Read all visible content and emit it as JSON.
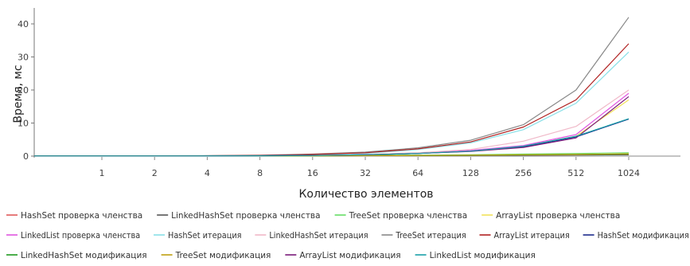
{
  "chart_data": {
    "type": "line",
    "title": "",
    "xlabel": "Количество элементов",
    "ylabel": "Время, мс",
    "categories": [
      "1",
      "2",
      "4",
      "8",
      "16",
      "32",
      "64",
      "128",
      "256",
      "512",
      "1024"
    ],
    "ylim": [
      0,
      45
    ],
    "yticks": [
      0,
      10,
      20,
      30,
      40
    ],
    "grid": false,
    "legend_position": "bottom",
    "series": [
      {
        "name": "HashSet проверка членства",
        "color": "#e05a5a",
        "values": [
          0.05,
          0.05,
          0.05,
          0.05,
          0.1,
          0.15,
          0.2,
          0.25,
          0.3,
          0.35,
          0.4
        ]
      },
      {
        "name": "LinkedHashSet проверка членства",
        "color": "#555555",
        "values": [
          0.05,
          0.05,
          0.05,
          0.05,
          0.1,
          0.15,
          0.2,
          0.25,
          0.3,
          0.35,
          0.4
        ]
      },
      {
        "name": "TreeSet проверка членства",
        "color": "#66dd66",
        "values": [
          0.05,
          0.05,
          0.05,
          0.05,
          0.1,
          0.2,
          0.3,
          0.4,
          0.6,
          0.8,
          1.0
        ]
      },
      {
        "name": "ArrayList проверка членства",
        "color": "#f2e25a",
        "values": [
          0.05,
          0.05,
          0.05,
          0.1,
          0.2,
          0.4,
          0.8,
          1.5,
          3.0,
          6.0,
          17.0
        ]
      },
      {
        "name": "LinkedList проверка членства",
        "color": "#e055e0",
        "values": [
          0.05,
          0.05,
          0.05,
          0.1,
          0.2,
          0.4,
          0.9,
          1.7,
          3.2,
          6.5,
          19.0
        ]
      },
      {
        "name": "HashSet итерация",
        "color": "#88e0e8",
        "values": [
          0.05,
          0.1,
          0.1,
          0.2,
          0.4,
          0.8,
          2.0,
          4.0,
          8.0,
          16.0,
          31.5
        ]
      },
      {
        "name": "LinkedHashSet итерация",
        "color": "#f0b8c8",
        "values": [
          0.05,
          0.05,
          0.05,
          0.1,
          0.2,
          0.5,
          1.0,
          2.0,
          4.5,
          9.0,
          20.0
        ]
      },
      {
        "name": "TreeSet итерация",
        "color": "#888888",
        "values": [
          0.05,
          0.1,
          0.15,
          0.3,
          0.6,
          1.2,
          2.5,
          4.8,
          9.5,
          20.0,
          42.0
        ]
      },
      {
        "name": "ArrayList итерация",
        "color": "#b02020",
        "values": [
          0.05,
          0.1,
          0.1,
          0.2,
          0.5,
          1.0,
          2.2,
          4.3,
          8.8,
          17.0,
          34.0
        ]
      },
      {
        "name": "HashSet модификация",
        "color": "#1c2a8c",
        "values": [
          0.05,
          0.05,
          0.05,
          0.1,
          0.2,
          0.4,
          0.8,
          1.5,
          2.8,
          5.8,
          11.2
        ]
      },
      {
        "name": "LinkedHashSet модификация",
        "color": "#1f9a1f",
        "values": [
          0.05,
          0.05,
          0.05,
          0.05,
          0.1,
          0.15,
          0.2,
          0.25,
          0.35,
          0.45,
          0.6
        ]
      },
      {
        "name": "TreeSet модификация",
        "color": "#c0a010",
        "values": [
          0.05,
          0.05,
          0.05,
          0.05,
          0.1,
          0.15,
          0.2,
          0.3,
          0.4,
          0.5,
          0.7
        ]
      },
      {
        "name": "ArrayList модификация",
        "color": "#7a1a7a",
        "values": [
          0.05,
          0.05,
          0.05,
          0.1,
          0.2,
          0.4,
          0.8,
          1.4,
          2.6,
          5.5,
          18.0
        ]
      },
      {
        "name": "LinkedList модификация",
        "color": "#1aa0a8",
        "values": [
          0.05,
          0.05,
          0.05,
          0.1,
          0.2,
          0.4,
          0.8,
          1.5,
          3.0,
          6.0,
          11.3
        ]
      }
    ]
  }
}
